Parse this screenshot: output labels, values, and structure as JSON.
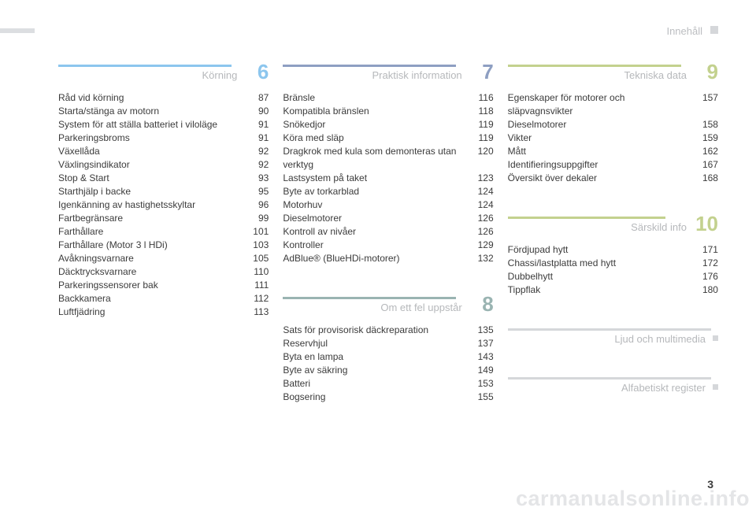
{
  "header": {
    "label": "Innehåll"
  },
  "page_number": "3",
  "watermark": "carmanualsonline.info",
  "colors": {
    "s6": "#8cc6ee",
    "s7": "#8e9fc2",
    "s8": "#9ab4b2",
    "s9": "#c3d18e",
    "s10": "#c3d18e",
    "simple": "#d5d7da"
  },
  "columns": [
    {
      "sections": [
        {
          "title": "Körning",
          "number": "6",
          "color_key": "s6",
          "entries": [
            {
              "label": "Råd vid körning",
              "page": "87"
            },
            {
              "label": "Starta/stänga av motorn",
              "page": "90"
            },
            {
              "label": "System för att ställa batteriet i viloläge",
              "page": "91"
            },
            {
              "label": "Parkeringsbroms",
              "page": "91"
            },
            {
              "label": "Växellåda",
              "page": "92"
            },
            {
              "label": "Växlingsindikator",
              "page": "92"
            },
            {
              "label": "Stop & Start",
              "page": "93"
            },
            {
              "label": "Starthjälp i backe",
              "page": "95"
            },
            {
              "label": "Igenkänning av hastighetsskyltar",
              "page": "96"
            },
            {
              "label": "Fartbegränsare",
              "page": "99"
            },
            {
              "label": "Farthållare",
              "page": "101"
            },
            {
              "label": "Farthållare (Motor 3 l HDi)",
              "page": "103"
            },
            {
              "label": "Avåkningsvarnare",
              "page": "105"
            },
            {
              "label": "Däcktrycksvarnare",
              "page": "110"
            },
            {
              "label": "Parkeringssensorer bak",
              "page": "111"
            },
            {
              "label": "Backkamera",
              "page": "112"
            },
            {
              "label": "Luftfjädring",
              "page": "113"
            }
          ]
        }
      ]
    },
    {
      "sections": [
        {
          "title": "Praktisk information",
          "number": "7",
          "color_key": "s7",
          "entries": [
            {
              "label": "Bränsle",
              "page": "116"
            },
            {
              "label": "Kompatibla bränslen",
              "page": "118"
            },
            {
              "label": "Snökedjor",
              "page": "119"
            },
            {
              "label": "Köra med släp",
              "page": "119"
            },
            {
              "label": "Dragkrok med kula som demonteras utan verktyg",
              "page": "120"
            },
            {
              "label": "Lastsystem på taket",
              "page": "123"
            },
            {
              "label": "Byte av torkarblad",
              "page": "124"
            },
            {
              "label": "Motorhuv",
              "page": "124"
            },
            {
              "label": "Dieselmotorer",
              "page": "126"
            },
            {
              "label": "Kontroll av nivåer",
              "page": "126"
            },
            {
              "label": "Kontroller",
              "page": "129"
            },
            {
              "label": "AdBlue® (BlueHDi-motorer)",
              "page": "132"
            }
          ]
        },
        {
          "title": "Om ett fel uppstår",
          "number": "8",
          "color_key": "s8",
          "entries": [
            {
              "label": "Sats för provisorisk däckreparation",
              "page": "135"
            },
            {
              "label": "Reservhjul",
              "page": "137"
            },
            {
              "label": "Byta en lampa",
              "page": "143"
            },
            {
              "label": "Byte av säkring",
              "page": "149"
            },
            {
              "label": "Batteri",
              "page": "153"
            },
            {
              "label": "Bogsering",
              "page": "155"
            }
          ]
        }
      ]
    },
    {
      "sections": [
        {
          "title": "Tekniska data",
          "number": "9",
          "color_key": "s9",
          "entries": [
            {
              "label": "Egenskaper för motorer och släpvagnsvikter",
              "page": "157"
            },
            {
              "label": "Dieselmotorer",
              "page": "158"
            },
            {
              "label": "Vikter",
              "page": "159"
            },
            {
              "label": "Mått",
              "page": "162"
            },
            {
              "label": "Identifieringsuppgifter",
              "page": "167"
            },
            {
              "label": "Översikt över dekaler",
              "page": "168"
            }
          ]
        },
        {
          "title": "Särskild info",
          "number": "10",
          "color_key": "s10",
          "entries": [
            {
              "label": "Fördjupad hytt",
              "page": "171"
            },
            {
              "label": "Chassi/lastplatta med hytt",
              "page": "172"
            },
            {
              "label": "Dubbelhytt",
              "page": "176"
            },
            {
              "label": "Tippflak",
              "page": "180"
            }
          ]
        },
        {
          "title": "Ljud och multimedia",
          "simple": true
        },
        {
          "title": "Alfabetiskt register",
          "simple": true
        }
      ]
    }
  ]
}
